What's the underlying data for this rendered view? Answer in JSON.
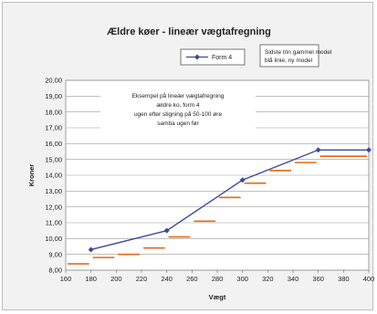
{
  "chart_data": {
    "type": "line",
    "title": "Ældre køer  - lineær vægtafregning",
    "xlabel": "Vægt",
    "ylabel": "Kroner",
    "xlim": [
      160,
      400
    ],
    "ylim": [
      8.0,
      20.0
    ],
    "x_ticks": [
      "160",
      "180",
      "200",
      "220",
      "240",
      "260",
      "280",
      "300",
      "320",
      "340",
      "360",
      "380",
      "400"
    ],
    "y_ticks": [
      "8,00",
      "9,00",
      "10,00",
      "11,00",
      "12,00",
      "13,00",
      "14,00",
      "15,00",
      "16,00",
      "17,00",
      "18,00",
      "19,00",
      "20,00"
    ],
    "series": [
      {
        "name": "Form 4",
        "color": "#3d4a99",
        "marker": "diamond",
        "x": [
          180,
          240,
          300,
          360,
          400
        ],
        "y": [
          9.3,
          10.5,
          13.7,
          15.6,
          15.6
        ]
      },
      {
        "name": "",
        "color": "#e06a1a",
        "style": "steps",
        "segments": [
          {
            "x": [
              160,
              180
            ],
            "y": 8.4
          },
          {
            "x": [
              180,
              200
            ],
            "y": 8.8
          },
          {
            "x": [
              200,
              220
            ],
            "y": 9.0
          },
          {
            "x": [
              220,
              240
            ],
            "y": 9.4
          },
          {
            "x": [
              240,
              260
            ],
            "y": 10.1
          },
          {
            "x": [
              260,
              280
            ],
            "y": 11.1
          },
          {
            "x": [
              280,
              300
            ],
            "y": 12.6
          },
          {
            "x": [
              300,
              320
            ],
            "y": 13.5
          },
          {
            "x": [
              320,
              340
            ],
            "y": 14.3
          },
          {
            "x": [
              340,
              360
            ],
            "y": 14.8
          },
          {
            "x": [
              360,
              400
            ],
            "y": 15.2
          }
        ]
      }
    ],
    "annotation": [
      "Eksempel på lineær vægtafregning",
      "ældre ko, form 4",
      "ugen efter stigning på 50-100 øre",
      "samba ugen før"
    ],
    "legend_note": [
      "Sidste trin gammel model",
      "blå linie, ny model"
    ],
    "grid": true,
    "legend_position": "top-right"
  }
}
